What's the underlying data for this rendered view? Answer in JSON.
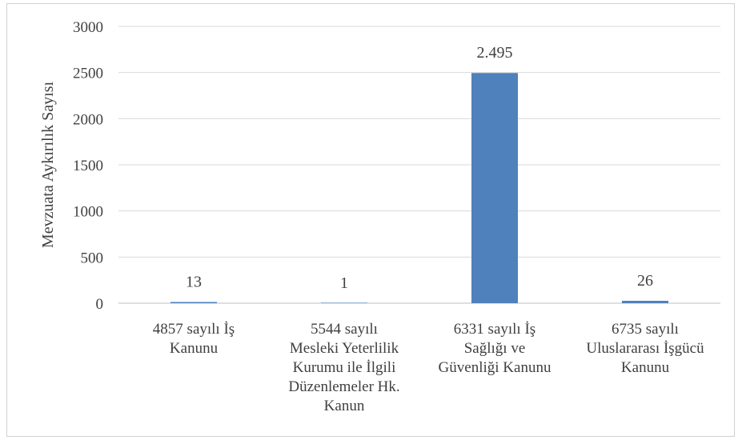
{
  "chart_data": {
    "type": "bar",
    "categories": [
      [
        "4857 sayılı İş",
        "Kanunu"
      ],
      [
        "5544 sayılı",
        "Mesleki Yeterlilik",
        "Kurumu ile İlgili",
        "Düzenlemeler Hk.",
        "Kanun"
      ],
      [
        "6331 sayılı İş",
        "Sağlığı ve",
        "Güvenliği Kanunu"
      ],
      [
        "6735 sayılı",
        "Uluslararası İşgücü",
        "Kanunu"
      ]
    ],
    "values": [
      13,
      1,
      2495,
      26
    ],
    "data_labels": [
      "13",
      "1",
      "2.495",
      "26"
    ],
    "ylabel": "Mevzuata Aykırılık Sayısı",
    "ylim": [
      0,
      3000
    ],
    "yticks": [
      0,
      500,
      1000,
      1500,
      2000,
      2500,
      3000
    ],
    "ytick_labels": [
      "0",
      "500",
      "1000",
      "1500",
      "2000",
      "2500",
      "3000"
    ],
    "grid": true,
    "bar_color": "#4f81bd"
  }
}
